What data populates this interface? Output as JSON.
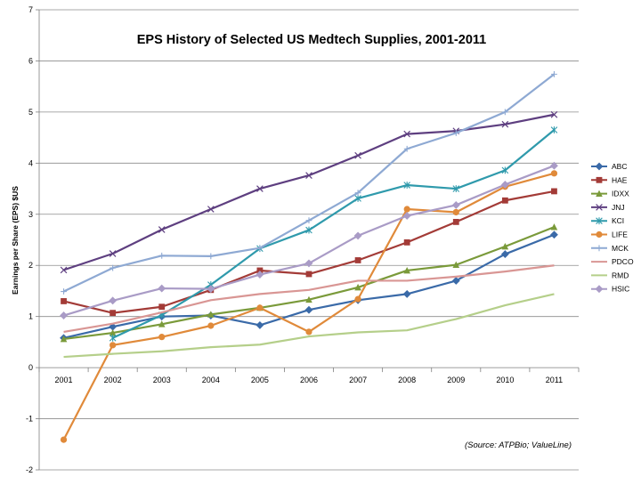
{
  "chart_data": {
    "type": "line",
    "title": "EPS History of Selected US Medtech Supplies, 2001-2011",
    "xlabel": "",
    "ylabel": "Earnings per Share (EPS) $US",
    "ylim": [
      -2,
      7
    ],
    "yticks": [
      -2,
      -1,
      0,
      1,
      2,
      3,
      4,
      5,
      6,
      7
    ],
    "grid": "horizontal",
    "legend_position": "right",
    "categories": [
      "2001",
      "2002",
      "2003",
      "2004",
      "2005",
      "2006",
      "2007",
      "2008",
      "2009",
      "2010",
      "2011"
    ],
    "source_note": "(Source: ATPBio; ValueLine)",
    "series": [
      {
        "name": "ABC",
        "color": "#3a6aa8",
        "marker": "diamond",
        "values": [
          0.58,
          0.8,
          1.0,
          1.02,
          0.83,
          1.13,
          1.32,
          1.44,
          1.7,
          2.22,
          2.6
        ]
      },
      {
        "name": "HAE",
        "color": "#a33b37",
        "marker": "square",
        "values": [
          1.3,
          1.07,
          1.19,
          1.52,
          1.9,
          1.83,
          2.1,
          2.45,
          2.85,
          3.27,
          3.45
        ]
      },
      {
        "name": "IDXX",
        "color": "#7a9a3a",
        "marker": "triangle",
        "values": [
          0.56,
          0.68,
          0.85,
          1.04,
          1.17,
          1.33,
          1.57,
          1.9,
          2.01,
          2.37,
          2.75
        ]
      },
      {
        "name": "JNJ",
        "color": "#5e3f80",
        "marker": "x",
        "values": [
          1.91,
          2.23,
          2.7,
          3.1,
          3.5,
          3.76,
          4.15,
          4.57,
          4.63,
          4.76,
          4.95
        ]
      },
      {
        "name": "KCI",
        "color": "#2f9aac",
        "marker": "star",
        "values": [
          null,
          0.58,
          1.03,
          1.62,
          2.33,
          2.69,
          3.31,
          3.57,
          3.5,
          3.86,
          4.65
        ]
      },
      {
        "name": "LIFE",
        "color": "#e08a3a",
        "marker": "circle",
        "values": [
          -1.41,
          0.44,
          0.6,
          0.82,
          1.17,
          0.7,
          1.34,
          3.1,
          3.04,
          3.54,
          3.8
        ]
      },
      {
        "name": "MCK",
        "color": "#8ea9d3",
        "marker": "plus",
        "values": [
          1.49,
          1.95,
          2.19,
          2.18,
          2.34,
          2.88,
          3.42,
          4.28,
          4.59,
          5.0,
          5.74
        ]
      },
      {
        "name": "PDCO",
        "color": "#d99694",
        "marker": "none",
        "values": [
          0.7,
          0.86,
          1.08,
          1.32,
          1.44,
          1.52,
          1.7,
          1.7,
          1.78,
          1.88,
          2.0
        ]
      },
      {
        "name": "RMD",
        "color": "#b5cf8a",
        "marker": "none",
        "values": [
          0.21,
          0.27,
          0.32,
          0.4,
          0.45,
          0.61,
          0.69,
          0.73,
          0.95,
          1.22,
          1.44
        ]
      },
      {
        "name": "HSIC",
        "color": "#a99bc6",
        "marker": "diamond",
        "values": [
          1.02,
          1.31,
          1.55,
          1.54,
          1.82,
          2.04,
          2.58,
          2.97,
          3.18,
          3.58,
          3.95
        ]
      }
    ]
  }
}
